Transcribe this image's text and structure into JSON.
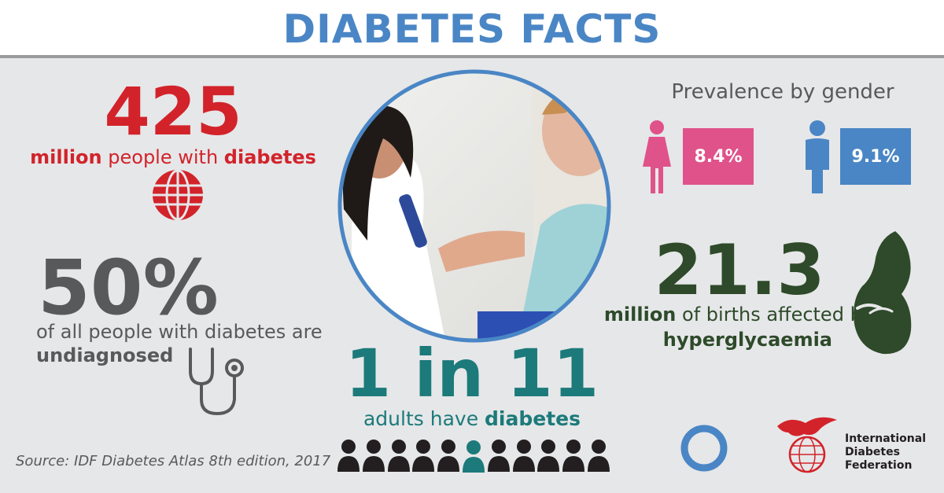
{
  "header": {
    "title": "DIABETES FACTS"
  },
  "stat_people": {
    "number": "425",
    "text_a": "million",
    "text_b": " people with ",
    "text_c": "diabetes"
  },
  "stat_undiagnosed": {
    "number": "50%",
    "line1": "of all people with diabetes are",
    "line2": "undiagnosed"
  },
  "stat_adults": {
    "number": "1 in 11",
    "text_a": "adults have ",
    "text_b": "diabetes",
    "figures_total": 11,
    "figures_highlighted_index": 5
  },
  "gender": {
    "heading": "Prevalence by gender",
    "female_value": "8.4%",
    "male_value": "9.1%"
  },
  "stat_births": {
    "number": "21.3",
    "text_a": "million",
    "text_b": " of births affected by",
    "text_c": "hyperglycaemia"
  },
  "source": "Source: IDF Diabetes Atlas 8th edition, 2017",
  "idf_logo": {
    "line1": "International",
    "line2": "Diabetes",
    "line3": "Federation"
  },
  "colors": {
    "title_blue": "#4a86c5",
    "red": "#d2232a",
    "female_pink": "#e0528a",
    "male_blue": "#4a86c5",
    "teal": "#1c7a7a",
    "green": "#2e4a2a",
    "grey": "#58595b"
  }
}
